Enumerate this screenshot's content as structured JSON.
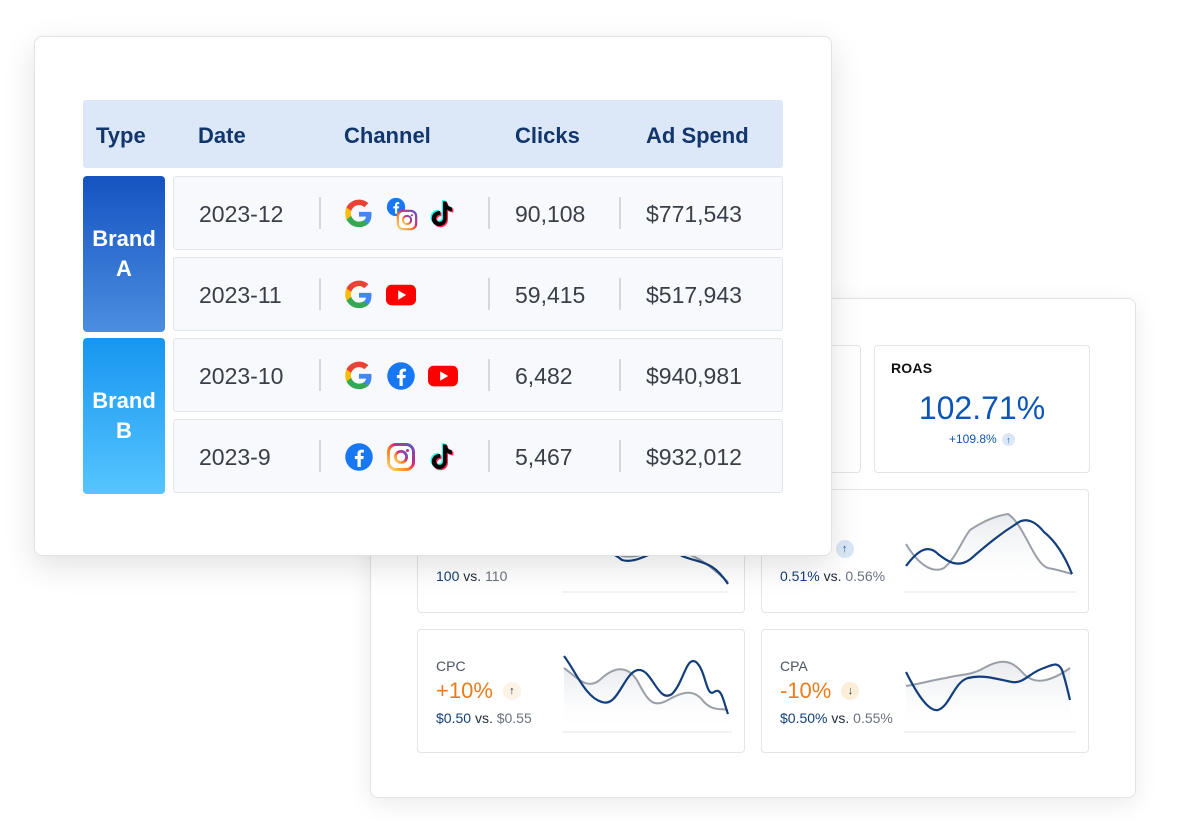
{
  "table": {
    "headers": [
      "Type",
      "Date",
      "Channel",
      "Clicks",
      "Ad Spend"
    ],
    "brands": [
      {
        "label_line1": "Brand",
        "label_line2": "A"
      },
      {
        "label_line1": "Brand",
        "label_line2": "B"
      }
    ],
    "rows": [
      {
        "date": "2023-12",
        "channels": [
          "google",
          "facebook-instagram",
          "tiktok"
        ],
        "clicks": "90,108",
        "spend": "$771,543"
      },
      {
        "date": "2023-11",
        "channels": [
          "google",
          "youtube"
        ],
        "clicks": "59,415",
        "spend": "$517,943"
      },
      {
        "date": "2023-10",
        "channels": [
          "google",
          "facebook",
          "youtube"
        ],
        "clicks": "6,482",
        "spend": "$940,981"
      },
      {
        "date": "2023-9",
        "channels": [
          "facebook",
          "instagram",
          "tiktok"
        ],
        "clicks": "5,467",
        "spend": "$932,012"
      }
    ]
  },
  "dashboard": {
    "roas": {
      "label": "ROAS",
      "value": "102.71%",
      "delta": "+109.8%",
      "direction": "up"
    },
    "partial_left": {
      "cur": "100",
      "vs": "vs.",
      "prev": "110"
    },
    "partial_right": {
      "pct": "%",
      "cur": "0.51%",
      "vs": "vs.",
      "prev": "0.56%",
      "direction": "up"
    },
    "cpc": {
      "label": "CPC",
      "pct": "+10%",
      "cur": "$0.50",
      "vs": "vs.",
      "prev": "$0.55",
      "direction": "up"
    },
    "cpa": {
      "label": "CPA",
      "pct": "-10%",
      "cur": "$0.50%",
      "vs": "vs.",
      "prev": "0.55%",
      "direction": "down"
    }
  },
  "colors": {
    "header_bg": "#dce8f7",
    "header_text": "#12356b",
    "brand_a": "#1553c1",
    "brand_b": "#1795f0",
    "accent_blue": "#0b56b8",
    "accent_orange": "#ea7c1c",
    "spark_current": "#123e7c",
    "spark_previous": "#9aa0a8"
  }
}
